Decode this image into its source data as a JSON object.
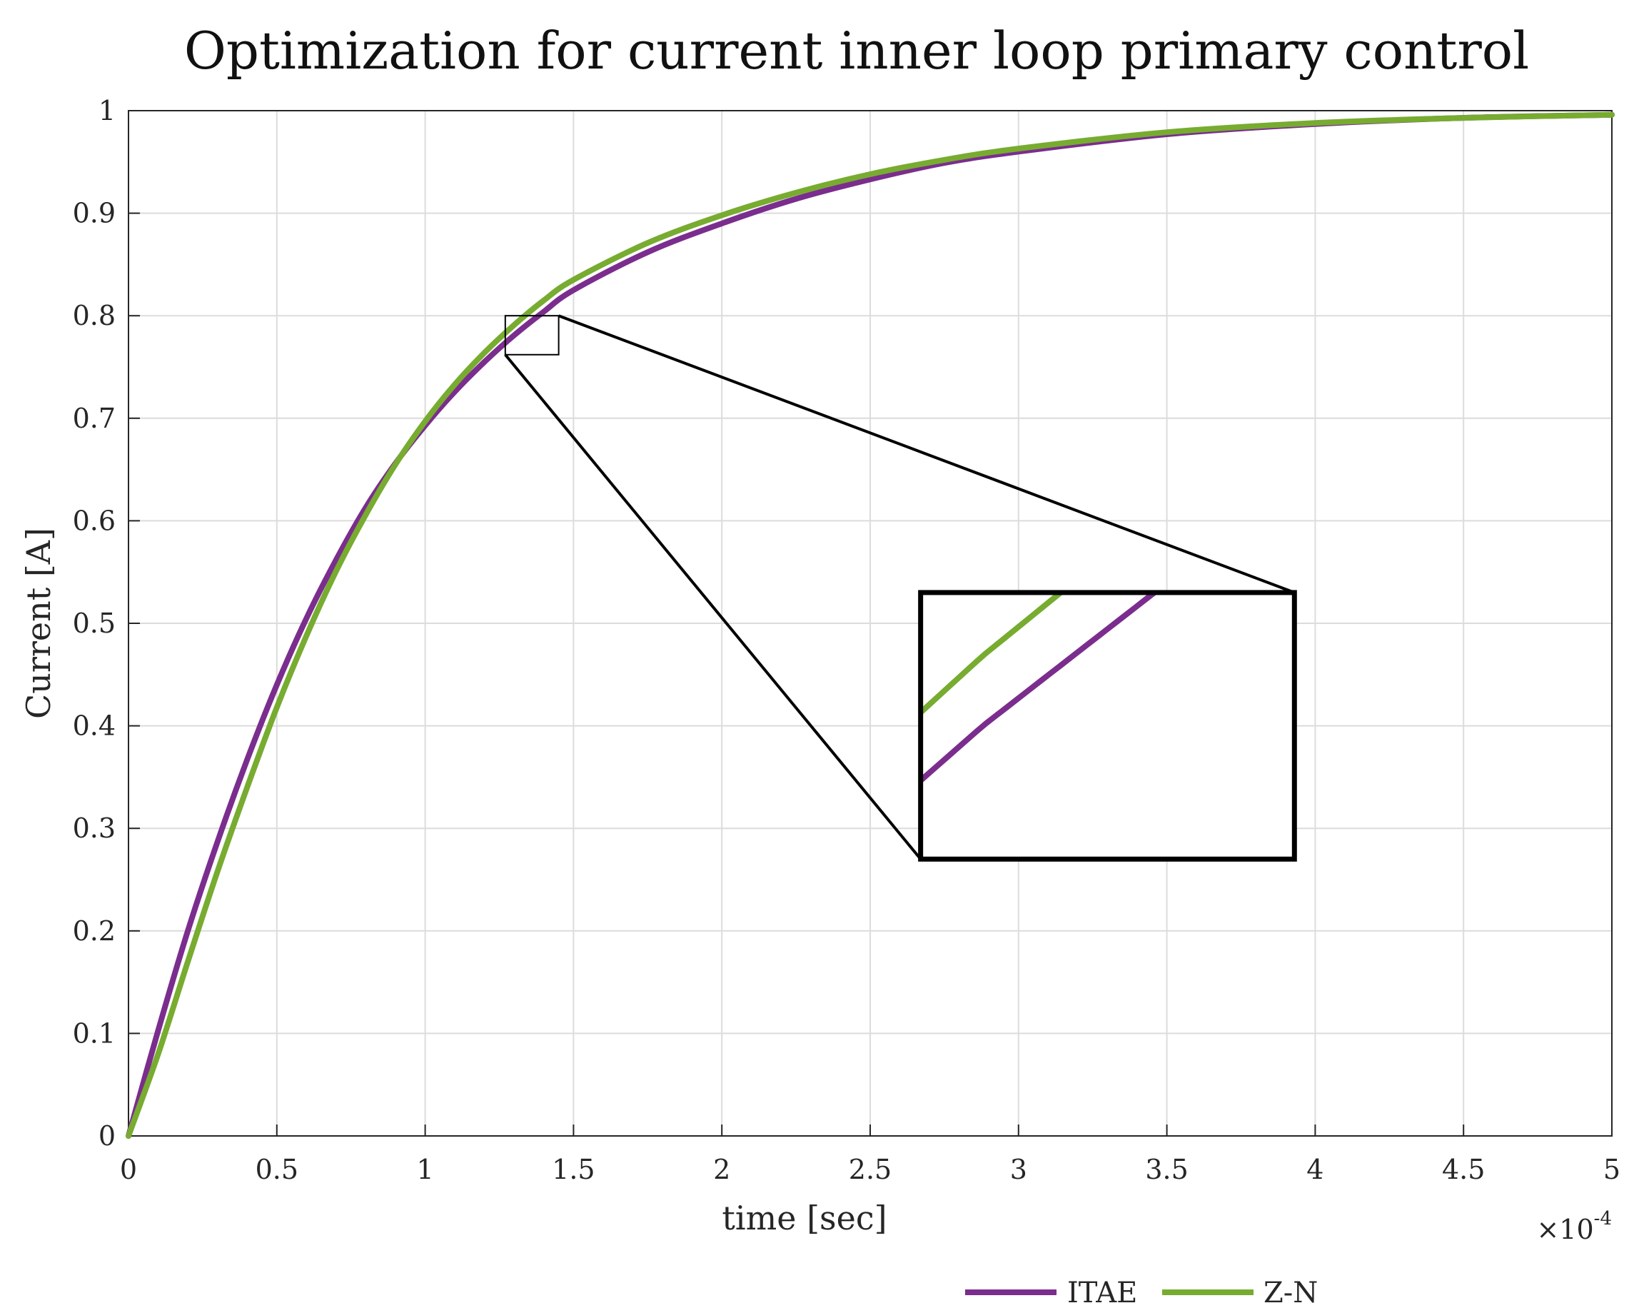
{
  "chart_data": {
    "type": "line",
    "title": "Optimization for current inner loop primary control",
    "xlabel": "time [sec]",
    "ylabel": "Current  [A]",
    "x_exponent_label": {
      "base": "×10",
      "exponent": "-4"
    },
    "xlim": [
      0,
      5
    ],
    "ylim": [
      0,
      1
    ],
    "x_ticks": [
      "0",
      "0.5",
      "1",
      "1.5",
      "2",
      "2.5",
      "3",
      "3.5",
      "4",
      "4.5",
      "5"
    ],
    "y_ticks": [
      "0",
      "0.1",
      "0.2",
      "0.3",
      "0.4",
      "0.5",
      "0.6",
      "0.7",
      "0.8",
      "0.9",
      "1"
    ],
    "grid": true,
    "legend_position": "bottom-right",
    "series": [
      {
        "name": "ITAE",
        "color": "#7B2D8E",
        "x": [
          0,
          0.1,
          0.2,
          0.3,
          0.4,
          0.5,
          0.6,
          0.7,
          0.8,
          0.9,
          1.0,
          1.1,
          1.2,
          1.3,
          1.4,
          1.5,
          1.75,
          2.0,
          2.25,
          2.5,
          2.75,
          3.0,
          3.5,
          4.0,
          4.5,
          5.0
        ],
        "y": [
          0,
          0.103,
          0.2,
          0.287,
          0.367,
          0.44,
          0.505,
          0.562,
          0.613,
          0.656,
          0.693,
          0.726,
          0.755,
          0.781,
          0.804,
          0.825,
          0.862,
          0.89,
          0.914,
          0.933,
          0.949,
          0.96,
          0.977,
          0.987,
          0.993,
          0.996
        ]
      },
      {
        "name": "Z-N",
        "color": "#77AC30",
        "x": [
          0,
          0.1,
          0.2,
          0.3,
          0.4,
          0.5,
          0.6,
          0.7,
          0.8,
          0.9,
          1.0,
          1.1,
          1.2,
          1.3,
          1.4,
          1.5,
          1.75,
          2.0,
          2.25,
          2.5,
          2.75,
          3.0,
          3.5,
          4.0,
          4.5,
          5.0
        ],
        "y": [
          0,
          0.08,
          0.17,
          0.258,
          0.34,
          0.418,
          0.488,
          0.551,
          0.606,
          0.655,
          0.697,
          0.733,
          0.764,
          0.791,
          0.815,
          0.835,
          0.871,
          0.898,
          0.92,
          0.938,
          0.952,
          0.963,
          0.979,
          0.988,
          0.993,
          0.996
        ]
      }
    ],
    "zoom": {
      "source_x": [
        1.27,
        1.45
      ],
      "source_y": [
        0.762,
        0.8
      ],
      "inset_x": [
        2.67,
        3.93
      ],
      "inset_y": [
        0.27,
        0.53
      ]
    }
  }
}
